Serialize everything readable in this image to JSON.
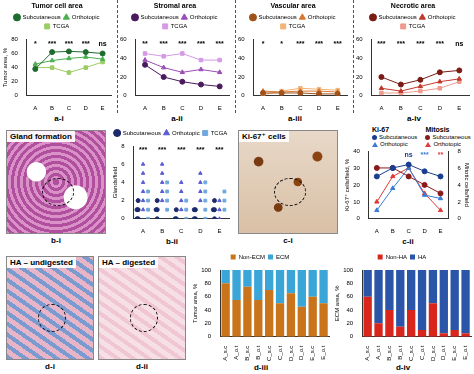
{
  "chart_data": [
    {
      "panel": "a-i",
      "type": "line",
      "title": "Tumor cell area",
      "ylabel": "Tumor area, %",
      "categories": [
        "A",
        "B",
        "C",
        "D",
        "E"
      ],
      "ylim": [
        0,
        80
      ],
      "yticks": [
        0,
        20,
        40,
        60,
        80
      ],
      "grid": false,
      "legend": "top",
      "series": [
        {
          "name": "Subcutaneous",
          "color": "#1e6b2e",
          "marker": "circle",
          "values": [
            38,
            62,
            63,
            62,
            60
          ]
        },
        {
          "name": "Orthotopic",
          "color": "#4caf50",
          "marker": "triangle",
          "values": [
            45,
            50,
            53,
            55,
            52
          ]
        },
        {
          "name": "TCGA",
          "color": "#9ccc65",
          "marker": "square",
          "values": [
            40,
            40,
            33,
            40,
            48
          ]
        }
      ],
      "annotations": [
        "*",
        "***",
        "***",
        "***",
        "ns"
      ]
    },
    {
      "panel": "a-ii",
      "type": "line",
      "title": "Stromal area",
      "categories": [
        "A",
        "B",
        "C",
        "D",
        "E"
      ],
      "ylim": [
        0,
        60
      ],
      "yticks": [
        0,
        20,
        40,
        60
      ],
      "grid": false,
      "legend": "top",
      "series": [
        {
          "name": "Subcutaneous",
          "color": "#4a1a5e",
          "marker": "circle",
          "values": [
            33,
            20,
            15,
            12,
            10
          ]
        },
        {
          "name": "Orthotopic",
          "color": "#9c4db8",
          "marker": "triangle",
          "values": [
            38,
            30,
            25,
            28,
            25
          ]
        },
        {
          "name": "TCGA",
          "color": "#d59ae6",
          "marker": "square",
          "values": [
            45,
            42,
            45,
            38,
            38
          ]
        }
      ],
      "annotations": [
        "**",
        "***",
        "***",
        "***",
        "***"
      ]
    },
    {
      "panel": "a-iii",
      "type": "line",
      "title": "Vascular area",
      "categories": [
        "A",
        "B",
        "C",
        "D",
        "E"
      ],
      "ylim": [
        0,
        60
      ],
      "yticks": [
        0,
        20,
        40,
        60
      ],
      "grid": false,
      "legend": "top",
      "series": [
        {
          "name": "Subcutaneous",
          "color": "#a0521c",
          "marker": "circle",
          "values": [
            3,
            3,
            3,
            2,
            2
          ]
        },
        {
          "name": "Orthotopic",
          "color": "#d9772e",
          "marker": "triangle",
          "values": [
            5,
            4,
            5,
            5,
            4
          ]
        },
        {
          "name": "TCGA",
          "color": "#f2b278",
          "marker": "square",
          "values": [
            1,
            5,
            8,
            7,
            6
          ]
        }
      ],
      "annotations": [
        "*",
        "*",
        "***",
        "***",
        "***"
      ]
    },
    {
      "panel": "a-iv",
      "type": "line",
      "title": "Necrotic area",
      "categories": [
        "A",
        "B",
        "C",
        "D",
        "E"
      ],
      "ylim": [
        0,
        60
      ],
      "yticks": [
        0,
        20,
        40,
        60
      ],
      "grid": false,
      "legend": "top",
      "series": [
        {
          "name": "Subcutaneous",
          "color": "#7b1c14",
          "marker": "circle",
          "values": [
            20,
            12,
            17,
            25,
            27
          ]
        },
        {
          "name": "Orthotopic",
          "color": "#c0392b",
          "marker": "triangle",
          "values": [
            8,
            5,
            10,
            15,
            18
          ]
        },
        {
          "name": "TCGA",
          "color": "#ef9a8f",
          "marker": "square",
          "values": [
            3,
            3,
            5,
            8,
            15
          ]
        }
      ],
      "annotations": [
        "***",
        "***",
        "***",
        "***",
        "ns"
      ]
    },
    {
      "panel": "b-ii",
      "type": "dot",
      "ylabel": "Glands/field",
      "categories": [
        "A",
        "B",
        "C",
        "D",
        "E"
      ],
      "ylim": [
        0,
        8
      ],
      "yticks": [
        0,
        2,
        4,
        6,
        8
      ],
      "grid": false,
      "legend": "top",
      "series": [
        {
          "name": "Subcutaneous",
          "color": "#1b2a6b",
          "marker": "circle",
          "values": [
            [
              0,
              0,
              1,
              1,
              2
            ],
            [
              0,
              1,
              1,
              2
            ],
            [
              0,
              0,
              1
            ],
            [
              0,
              0,
              1,
              1
            ],
            [
              0,
              1,
              1,
              2
            ]
          ]
        },
        {
          "name": "Orthotopic",
          "color": "#5b5bd6",
          "marker": "triangle",
          "values": [
            [
              1,
              2,
              3,
              4,
              5,
              6
            ],
            [
              2,
              3,
              4,
              5,
              6
            ],
            [
              1,
              2,
              3,
              4
            ],
            [
              2,
              3,
              4,
              5
            ],
            [
              0,
              1,
              2
            ]
          ]
        },
        {
          "name": "TCGA",
          "color": "#6fa8dc",
          "marker": "square",
          "values": [
            [
              0,
              1,
              2,
              3
            ],
            [
              1,
              2,
              3,
              4
            ],
            [
              0,
              1,
              2
            ],
            [
              0,
              1,
              2,
              3,
              4
            ],
            [
              1,
              2,
              3
            ]
          ]
        }
      ],
      "annotations": [
        "***",
        "***",
        "***",
        "***",
        "***"
      ]
    },
    {
      "panel": "c-ii",
      "type": "line",
      "ylabel": "Ki-67⁺ cells/field, %",
      "y2label": "Mitotic cells/field",
      "categories": [
        "A",
        "B",
        "C",
        "D",
        "E"
      ],
      "ylim": [
        0,
        40
      ],
      "yticks": [
        0,
        10,
        20,
        30,
        40
      ],
      "y2lim": [
        0,
        8
      ],
      "y2ticks": [
        0,
        2,
        4,
        6,
        8
      ],
      "grid": false,
      "legend": "top",
      "series": [
        {
          "name": "Subcutaneous",
          "group": "Ki-67",
          "color": "#1a3d8f",
          "marker": "circle",
          "values": [
            25,
            30,
            32,
            28,
            25
          ]
        },
        {
          "name": "Orthotopic",
          "group": "Ki-67",
          "color": "#3a7bd5",
          "marker": "triangle",
          "values": [
            5,
            18,
            30,
            14,
            12
          ]
        },
        {
          "name": "Subcutaneous",
          "group": "Mitosis",
          "axis": "y2",
          "color": "#8b1a1a",
          "marker": "circle",
          "values": [
            6,
            6,
            5,
            4,
            3
          ]
        },
        {
          "name": "Orthotopic",
          "group": "Mitosis",
          "axis": "y2",
          "color": "#e03a3a",
          "marker": "triangle",
          "values": [
            2,
            5,
            6,
            3,
            1
          ]
        }
      ],
      "annotations": [
        {
          "category": "C",
          "text": "ns",
          "color": "#1a3d8f"
        },
        {
          "category": "D",
          "text": "***",
          "color": "#3a7bd5"
        },
        {
          "category": "E",
          "text": "**",
          "color": "#e03a3a"
        }
      ]
    },
    {
      "panel": "d-iii",
      "type": "bar",
      "stacked": true,
      "ylabel": "Tumor area, %",
      "categories": [
        "A_s.c",
        "A_o.t",
        "B_s.c",
        "B_o.t",
        "C_s.c",
        "C_o.t",
        "D_s.c",
        "D_o.t",
        "E_s.c",
        "E_o.t"
      ],
      "ylim": [
        0,
        100
      ],
      "yticks": [
        0,
        20,
        40,
        60,
        80,
        100
      ],
      "grid": false,
      "legend": "top",
      "series": [
        {
          "name": "Non-ECM",
          "color": "#c9731a",
          "values": [
            80,
            55,
            75,
            55,
            70,
            50,
            65,
            45,
            60,
            50
          ]
        },
        {
          "name": "ECM",
          "color": "#3aa6d8",
          "values": [
            20,
            45,
            25,
            45,
            30,
            50,
            35,
            55,
            40,
            50
          ]
        }
      ]
    },
    {
      "panel": "d-iv",
      "type": "bar",
      "stacked": true,
      "ylabel": "ECM area, %",
      "categories": [
        "A_s.c",
        "A_o.t",
        "B_s.c",
        "B_o.t",
        "C_s.c",
        "C_o.t",
        "D_s.c",
        "D_o.t",
        "E_s.c",
        "E_o.t"
      ],
      "ylim": [
        0,
        100
      ],
      "yticks": [
        0,
        20,
        40,
        60,
        80,
        100
      ],
      "grid": false,
      "legend": "top",
      "series": [
        {
          "name": "Non-HA",
          "color": "#d9261c",
          "values": [
            60,
            20,
            40,
            15,
            40,
            10,
            50,
            5,
            10,
            5
          ]
        },
        {
          "name": "HA",
          "color": "#2a55a8",
          "values": [
            40,
            80,
            60,
            85,
            60,
            90,
            50,
            95,
            90,
            95
          ]
        }
      ]
    }
  ],
  "micrographs": [
    {
      "panel": "b-i",
      "label": "Gland formation"
    },
    {
      "panel": "c-i",
      "label": "Ki-67⁺ cells"
    },
    {
      "panel": "d-i",
      "label": "HA – undigested"
    },
    {
      "panel": "d-ii",
      "label": "HA – digested"
    }
  ]
}
